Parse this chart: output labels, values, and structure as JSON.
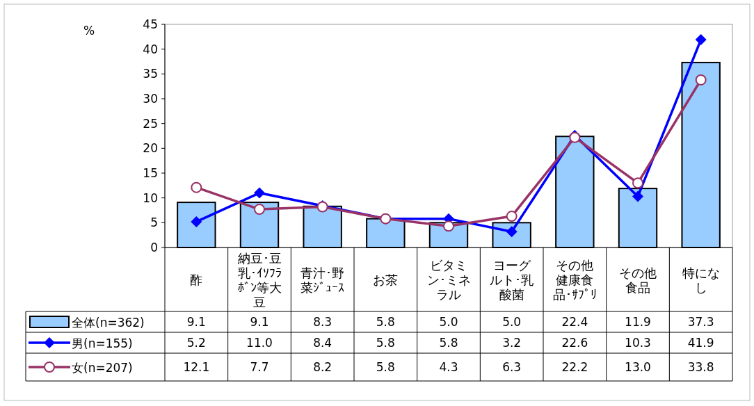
{
  "chart_data": {
    "type": "bar",
    "ylabel": "%",
    "categories": [
      "酢",
      "納豆･豆乳･ｲｿﾌﾗﾎﾞﾝ等大豆",
      "青汁･野菜ｼﾞｭｰｽ",
      "お茶",
      "ビタミン･ミネラル",
      "ヨーグルト･乳酸菌",
      "その他健康食品･ｻﾌﾟﾘ",
      "その他食品",
      "特になし"
    ],
    "series": [
      {
        "name": "全体(n=362)",
        "color": "#99ccff",
        "values": [
          9.1,
          9.1,
          8.3,
          5.8,
          5.0,
          5.0,
          22.4,
          11.9,
          37.3
        ],
        "value_labels": [
          "9.1",
          "9.1",
          "8.3",
          "5.8",
          "5.0",
          "5.0",
          "22.4",
          "11.9",
          "37.3"
        ]
      },
      {
        "name": "男(n=155)",
        "type": "line",
        "color": "#0000ff",
        "marker": "diamond",
        "values": [
          5.2,
          11.0,
          8.4,
          5.8,
          5.8,
          3.2,
          22.6,
          10.3,
          41.9
        ],
        "value_labels": [
          "5.2",
          "11.0",
          "8.4",
          "5.8",
          "5.8",
          "3.2",
          "22.6",
          "10.3",
          "41.9"
        ]
      },
      {
        "name": "女(n=207)",
        "type": "line",
        "color": "#993366",
        "marker": "circle",
        "values": [
          12.1,
          7.7,
          8.2,
          5.8,
          4.3,
          6.3,
          22.2,
          13.0,
          33.8
        ],
        "value_labels": [
          "12.1",
          "7.7",
          "8.2",
          "5.8",
          "4.3",
          "6.3",
          "22.2",
          "13.0",
          "33.8"
        ]
      }
    ],
    "ylim": [
      0,
      45
    ],
    "yticks": [
      0,
      5,
      10,
      15,
      20,
      25,
      30,
      35,
      40,
      45
    ],
    "grid": false,
    "legend": "bottom left"
  }
}
